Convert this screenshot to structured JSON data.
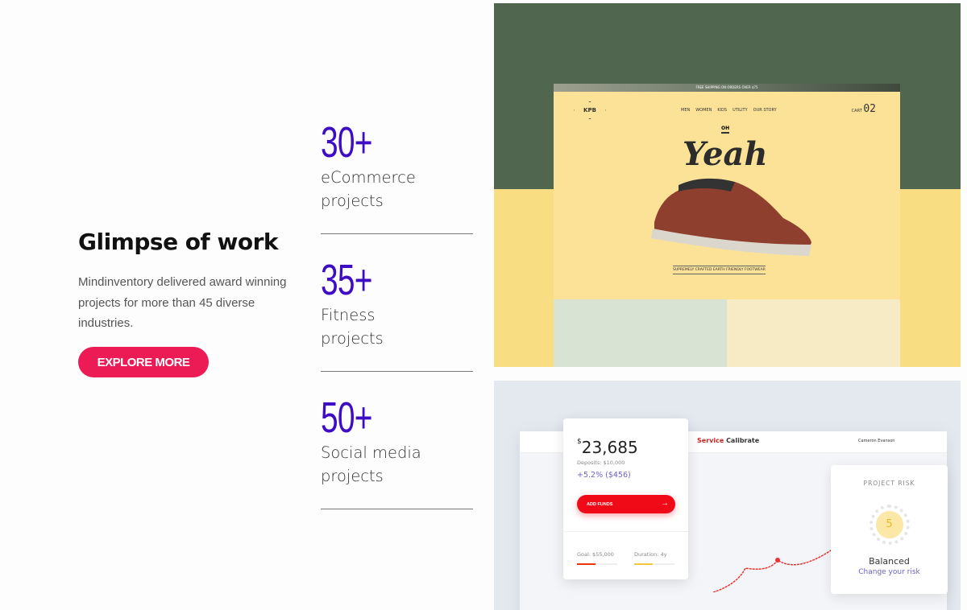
{
  "intro": {
    "title": "Glimpse of work",
    "description": "Mindinventory delivered award winning projects for more than 45 diverse industries.",
    "button": "EXPLORE MORE"
  },
  "stats": [
    {
      "value": "30+",
      "label_line1": "eCommerce",
      "label_line2": "projects"
    },
    {
      "value": "35+",
      "label_line1": "Fitness",
      "label_line2": "projects"
    },
    {
      "value": "50+",
      "label_line1": "Social media",
      "label_line2": "projects"
    }
  ],
  "shot1": {
    "strip": "FREE SHIPPING ON ORDERS OVER $75",
    "logo": "KPB",
    "nav": [
      "MEN",
      "WOMEN",
      "KIDS",
      "UTILITY",
      "OUR STORY"
    ],
    "cart_label": "CART",
    "cart_count": "02",
    "oh": "OH",
    "headline": "Yeah",
    "tagline": "SUPREMELY CRAFTED EARTH FRIENDLY FOOTWEAR"
  },
  "shot2": {
    "brand_red": "Service",
    "brand_dark": "Calibrate",
    "user": "Cameron Evanson",
    "currency": "$",
    "amount": "23,685",
    "deposits": "Deposits: $10,000",
    "change": "+5.2% ($456)",
    "add_funds": "ADD FUNDS",
    "goal": "Goal: $55,000",
    "duration": "Duration: 4y",
    "goal_progress": 0.45,
    "duration_progress": 0.45,
    "risk_title": "PROJECT RISK",
    "risk_value": "5",
    "risk_label": "Balanced",
    "risk_link": "Change your risk"
  },
  "colors": {
    "accent": "#3d0cc4",
    "button": "#ec1b55"
  }
}
